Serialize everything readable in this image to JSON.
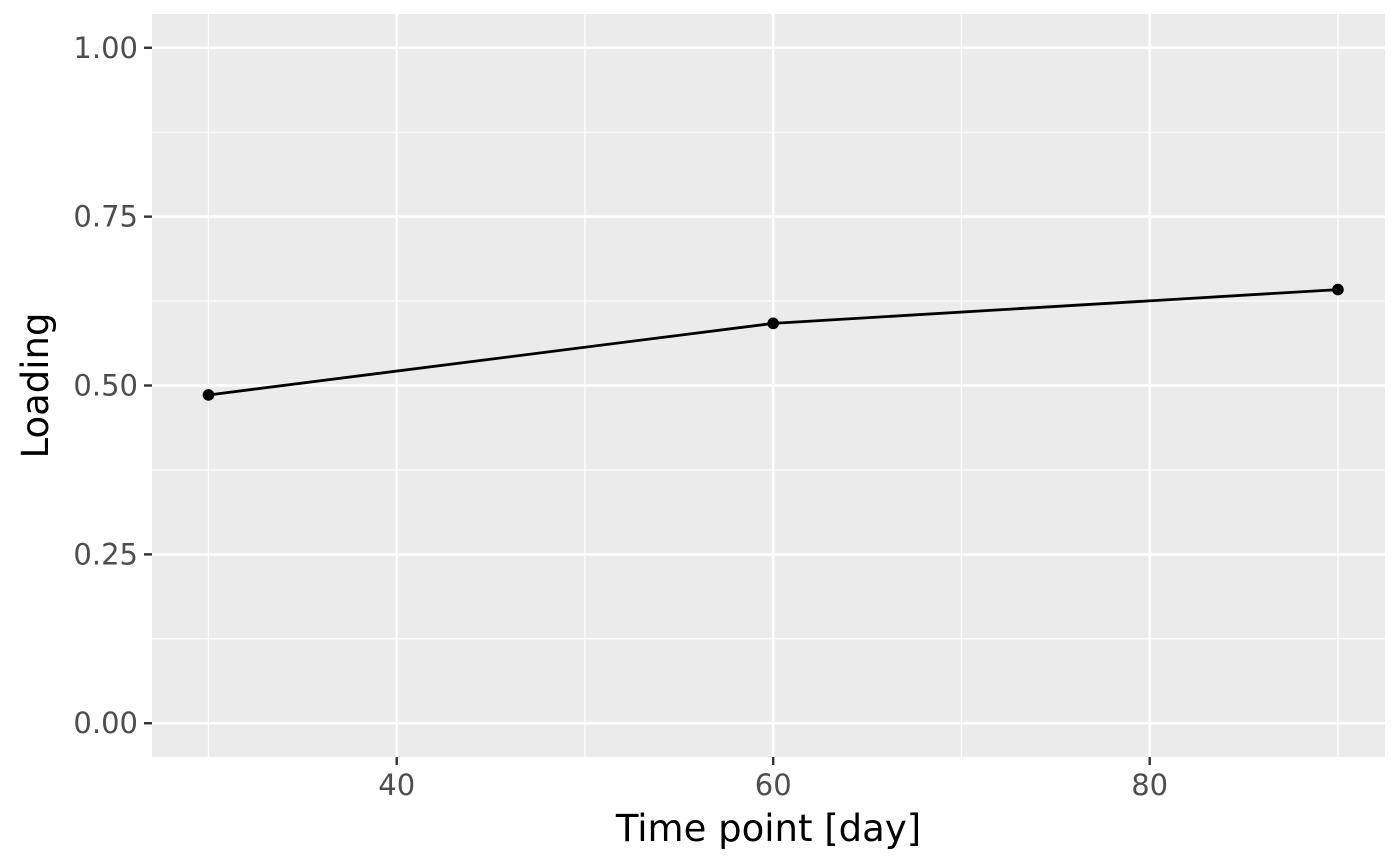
{
  "chart_data": {
    "type": "line",
    "title": "",
    "xlabel": "Time point [day]",
    "ylabel": "Loading",
    "xlim": [
      27,
      92.5
    ],
    "ylim": [
      -0.05,
      1.05
    ],
    "x_ticks": [
      40,
      60,
      80
    ],
    "x_tick_labels": [
      "40",
      "60",
      "80"
    ],
    "x_minor_ticks": [
      30,
      50,
      70,
      90
    ],
    "y_ticks": [
      0,
      0.25,
      0.5,
      0.75,
      1
    ],
    "y_tick_labels": [
      "0.00",
      "0.25",
      "0.50",
      "0.75",
      "1.00"
    ],
    "y_minor_ticks": [
      0.125,
      0.375,
      0.625,
      0.875
    ],
    "grid": true,
    "legend": "none",
    "series": [
      {
        "x": [
          30,
          60,
          90
        ],
        "values": [
          0.486,
          0.592,
          0.642
        ],
        "color": "#000000"
      }
    ],
    "colors": {
      "panel_background": "#ebebeb",
      "grid_major": "#ffffff",
      "grid_minor": "#ffffff",
      "tick_mark": "#333333",
      "tick_text": "#4d4d4d",
      "axis_title": "#000000"
    }
  }
}
